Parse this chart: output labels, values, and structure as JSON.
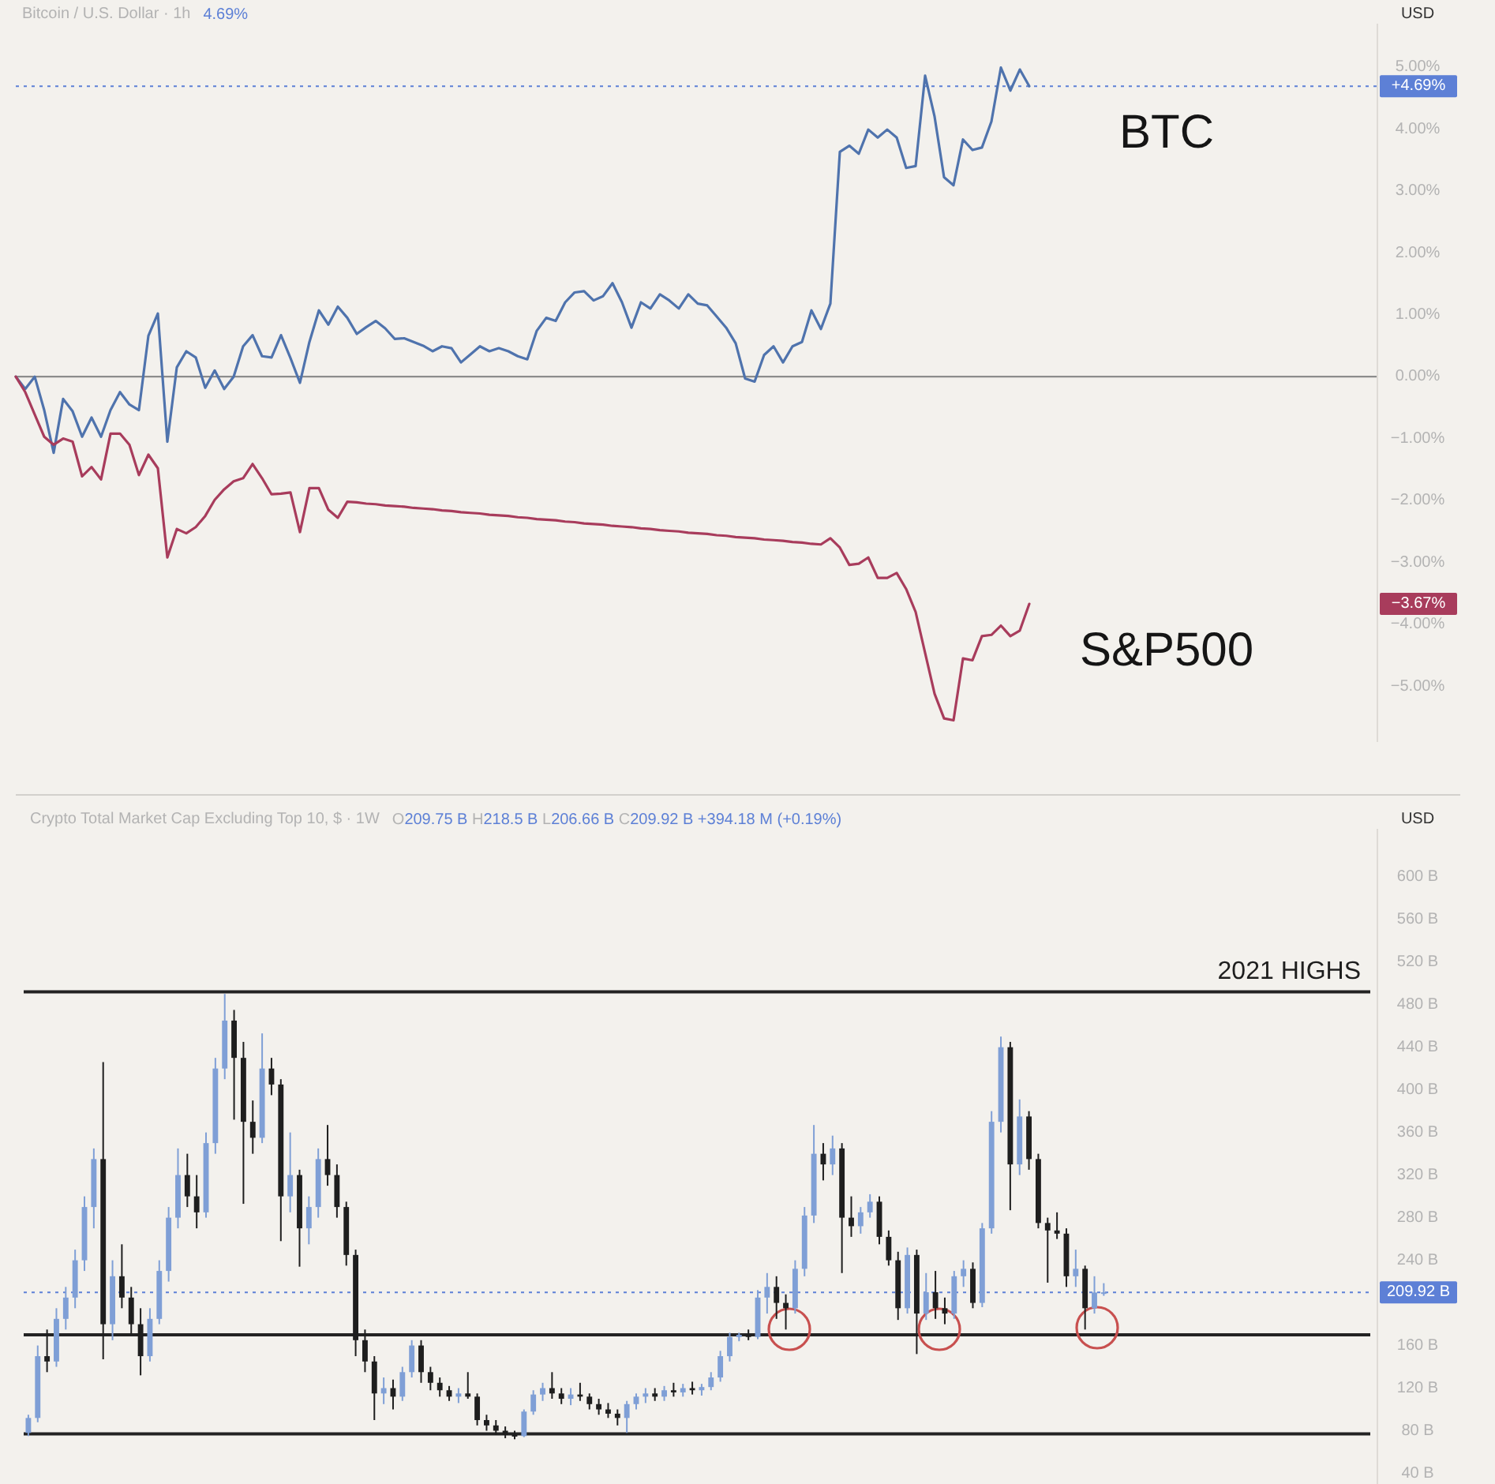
{
  "chart_data": [
    {
      "type": "line",
      "title": "Bitcoin / U.S. Dollar · 1h",
      "subtitle": "4.69%",
      "ylabel": "USD",
      "tick_labels": "y",
      "categories": [
        null,
        null,
        null,
        null,
        null,
        null,
        null,
        null,
        null,
        null,
        null,
        null,
        null,
        null,
        null,
        null,
        null,
        null,
        null,
        null,
        null,
        null,
        null,
        null,
        null,
        null,
        null,
        null,
        null,
        null,
        null,
        null,
        null,
        null,
        null,
        null,
        null,
        null,
        null,
        null,
        null,
        null,
        null,
        null,
        null,
        null,
        null,
        null,
        null,
        null,
        null,
        null,
        null,
        null,
        null,
        null,
        null,
        null,
        null,
        null,
        null,
        null,
        null,
        null,
        null,
        null,
        null,
        null,
        null,
        null,
        null,
        null,
        null,
        null,
        null,
        null,
        null,
        null,
        null,
        null,
        null,
        null,
        null,
        null,
        null,
        null,
        null,
        null,
        null,
        null,
        null,
        null,
        null,
        null,
        null,
        null,
        null,
        null,
        null,
        null,
        null,
        null,
        null,
        null,
        null,
        null,
        null,
        null
      ],
      "series": [
        {
          "name": "BTC",
          "color": "#4f73ad",
          "values": [
            0.0,
            -0.2,
            0.0,
            -0.54,
            -1.23,
            -0.36,
            -0.56,
            -0.97,
            -0.66,
            -0.97,
            -0.54,
            -0.25,
            -0.45,
            -0.54,
            0.66,
            1.02,
            -1.05,
            0.15,
            0.41,
            0.31,
            -0.18,
            0.1,
            -0.2,
            0.0,
            0.49,
            0.67,
            0.33,
            0.31,
            0.67,
            0.3,
            -0.1,
            0.56,
            1.07,
            0.84,
            1.13,
            0.95,
            0.69,
            0.8,
            0.9,
            0.78,
            0.61,
            0.62,
            0.56,
            0.5,
            0.41,
            0.49,
            0.46,
            0.23,
            0.36,
            0.49,
            0.41,
            0.46,
            0.41,
            0.33,
            0.28,
            0.74,
            0.95,
            0.9,
            1.2,
            1.36,
            1.38,
            1.23,
            1.3,
            1.51,
            1.2,
            0.79,
            1.2,
            1.1,
            1.33,
            1.23,
            1.1,
            1.33,
            1.18,
            1.15,
            0.97,
            0.79,
            0.54,
            -0.03,
            -0.08,
            0.35,
            0.49,
            0.23,
            0.49,
            0.56,
            1.07,
            0.77,
            1.18,
            3.63,
            3.73,
            3.6,
            3.99,
            3.86,
            3.99,
            3.86,
            3.37,
            3.4,
            4.86,
            4.2,
            3.22,
            3.09,
            3.83,
            3.66,
            3.7,
            4.12,
            4.99,
            4.62,
            4.96,
            4.69
          ]
        },
        {
          "name": "S&P500",
          "color": "#a83c5c",
          "values": [
            0.0,
            -0.25,
            -0.61,
            -0.97,
            -1.1,
            -1.0,
            -1.05,
            -1.61,
            -1.46,
            -1.66,
            -0.92,
            -0.92,
            -1.1,
            -1.59,
            -1.26,
            -1.48,
            -2.92,
            -2.46,
            -2.53,
            -2.43,
            -2.25,
            -1.99,
            -1.82,
            -1.69,
            -1.64,
            -1.41,
            -1.64,
            -1.9,
            -1.89,
            -1.87,
            -2.51,
            -1.8,
            -1.8,
            -2.15,
            -2.28,
            -2.02,
            -2.03,
            -2.05,
            -2.06,
            -2.08,
            -2.09,
            -2.1,
            -2.12,
            -2.13,
            -2.14,
            -2.16,
            -2.17,
            -2.19,
            -2.2,
            -2.21,
            -2.23,
            -2.24,
            -2.25,
            -2.27,
            -2.28,
            -2.3,
            -2.31,
            -2.32,
            -2.34,
            -2.35,
            -2.37,
            -2.38,
            -2.39,
            -2.41,
            -2.42,
            -2.43,
            -2.45,
            -2.46,
            -2.48,
            -2.49,
            -2.5,
            -2.52,
            -2.53,
            -2.54,
            -2.56,
            -2.57,
            -2.59,
            -2.6,
            -2.61,
            -2.63,
            -2.64,
            -2.65,
            -2.67,
            -2.68,
            -2.7,
            -2.71,
            -2.61,
            -2.76,
            -3.04,
            -3.02,
            -2.92,
            -3.25,
            -3.25,
            -3.17,
            -3.43,
            -3.8,
            -4.46,
            -5.12,
            -5.52,
            -5.55,
            -4.55,
            -4.58,
            -4.19,
            -4.17,
            -4.02,
            -4.19,
            -4.1,
            -3.67
          ]
        }
      ],
      "ylim": [
        -5.9,
        5.7
      ],
      "yticks": [
        {
          "value": -5,
          "label": "−5.00%"
        },
        {
          "value": -4,
          "label": "−4.00%"
        },
        {
          "value": -3,
          "label": "−3.00%"
        },
        {
          "value": -2,
          "label": "−2.00%"
        },
        {
          "value": -1,
          "label": "−1.00%"
        },
        {
          "value": 0,
          "label": "0.00%"
        },
        {
          "value": 1,
          "label": "1.00%"
        },
        {
          "value": 2,
          "label": "2.00%"
        },
        {
          "value": 3,
          "label": "3.00%"
        },
        {
          "value": 4,
          "label": "4.00%"
        },
        {
          "value": 5,
          "label": "5.00%"
        }
      ],
      "ref_lines": [
        {
          "axis": "y",
          "value": 0,
          "color": "#8c8c8c"
        },
        {
          "axis": "y",
          "value": 4.69,
          "color": "#5d80d6",
          "line_style": "dotted"
        }
      ],
      "annotations": [
        "+4.69%",
        "−3.67%"
      ]
    },
    {
      "type": "candlestick",
      "title": "Crypto Total Market Cap Excluding Top 10, $ · 1W",
      "subtitle": "O209.75 B H218.5 B L206.66 B C209.92 B +394.18 M (+0.19%)",
      "ylabel": "USD",
      "tick_labels": "y",
      "categories": [
        null,
        null,
        null,
        null,
        null,
        null,
        null,
        null,
        null,
        null,
        null,
        null,
        null,
        null,
        null,
        null,
        null,
        null,
        null,
        null,
        null,
        null,
        null,
        null,
        null,
        null,
        null,
        null,
        null,
        null,
        null,
        null,
        null,
        null,
        null,
        null,
        null,
        null,
        null,
        null,
        null,
        null,
        null,
        null,
        null,
        null,
        null,
        null,
        null,
        null,
        null,
        null,
        null,
        null,
        null,
        null,
        null,
        null,
        null,
        null,
        null,
        null,
        null,
        null,
        null,
        null,
        null,
        null,
        null,
        null,
        null,
        null,
        null,
        null,
        null,
        null,
        null,
        null,
        null,
        null,
        null,
        null,
        null,
        null,
        null,
        null,
        null,
        null,
        null,
        null,
        null,
        null,
        null,
        null,
        null,
        null,
        null,
        null,
        null,
        null,
        null,
        null,
        null,
        null,
        null,
        null,
        null,
        null,
        null,
        null,
        null,
        null,
        null,
        null,
        null,
        null,
        null,
        null,
        null,
        null,
        null,
        null,
        null,
        null,
        null,
        null,
        null,
        null,
        null,
        null,
        null,
        null,
        null,
        null,
        null,
        null,
        null,
        null,
        null,
        null,
        null,
        null,
        null,
        null
      ],
      "ohlc": [
        [
          78,
          95,
          75,
          92
        ],
        [
          92,
          160,
          88,
          150
        ],
        [
          150,
          175,
          135,
          145
        ],
        [
          145,
          195,
          140,
          185
        ],
        [
          185,
          215,
          175,
          205
        ],
        [
          205,
          250,
          195,
          240
        ],
        [
          240,
          300,
          230,
          290
        ],
        [
          290,
          345,
          270,
          335
        ],
        [
          335,
          426,
          147,
          180
        ],
        [
          180,
          240,
          165,
          225
        ],
        [
          225,
          255,
          195,
          205
        ],
        [
          205,
          215,
          170,
          180
        ],
        [
          180,
          195,
          132,
          150
        ],
        [
          150,
          195,
          145,
          185
        ],
        [
          185,
          240,
          180,
          230
        ],
        [
          230,
          290,
          220,
          280
        ],
        [
          280,
          345,
          270,
          320
        ],
        [
          320,
          340,
          290,
          300
        ],
        [
          300,
          320,
          270,
          285
        ],
        [
          285,
          360,
          280,
          350
        ],
        [
          350,
          430,
          340,
          420
        ],
        [
          420,
          490,
          410,
          465
        ],
        [
          465,
          475,
          372,
          430
        ],
        [
          430,
          445,
          293,
          370
        ],
        [
          370,
          390,
          340,
          355
        ],
        [
          355,
          453,
          350,
          420
        ],
        [
          420,
          430,
          395,
          405
        ],
        [
          405,
          410,
          258,
          300
        ],
        [
          300,
          360,
          285,
          320
        ],
        [
          320,
          325,
          234,
          270
        ],
        [
          270,
          300,
          255,
          290
        ],
        [
          290,
          345,
          280,
          335
        ],
        [
          335,
          367,
          310,
          320
        ],
        [
          320,
          330,
          280,
          290
        ],
        [
          290,
          295,
          235,
          245
        ],
        [
          245,
          250,
          150,
          165
        ],
        [
          165,
          175,
          135,
          145
        ],
        [
          145,
          150,
          90,
          115
        ],
        [
          115,
          130,
          105,
          120
        ],
        [
          120,
          128,
          100,
          112
        ],
        [
          112,
          140,
          108,
          135
        ],
        [
          135,
          165,
          130,
          160
        ],
        [
          160,
          165,
          125,
          135
        ],
        [
          135,
          140,
          118,
          125
        ],
        [
          125,
          130,
          112,
          118
        ],
        [
          118,
          122,
          108,
          112
        ],
        [
          112,
          120,
          106,
          115
        ],
        [
          115,
          135,
          110,
          112
        ],
        [
          112,
          115,
          85,
          90
        ],
        [
          90,
          95,
          80,
          85
        ],
        [
          85,
          90,
          76,
          80
        ],
        [
          80,
          84,
          73,
          76
        ],
        [
          76,
          80,
          72,
          75
        ],
        [
          75,
          100,
          74,
          98
        ],
        [
          98,
          118,
          95,
          114
        ],
        [
          114,
          125,
          108,
          120
        ],
        [
          120,
          135,
          110,
          115
        ],
        [
          115,
          120,
          105,
          110
        ],
        [
          110,
          120,
          104,
          114
        ],
        [
          114,
          125,
          108,
          112
        ],
        [
          112,
          115,
          100,
          105
        ],
        [
          105,
          110,
          95,
          100
        ],
        [
          100,
          106,
          92,
          96
        ],
        [
          96,
          100,
          85,
          92
        ],
        [
          92,
          108,
          78,
          105
        ],
        [
          105,
          115,
          100,
          112
        ],
        [
          112,
          120,
          106,
          115
        ],
        [
          115,
          120,
          108,
          112
        ],
        [
          112,
          122,
          108,
          118
        ],
        [
          118,
          125,
          112,
          116
        ],
        [
          116,
          124,
          112,
          120
        ],
        [
          120,
          126,
          114,
          118
        ],
        [
          118,
          124,
          113,
          121
        ],
        [
          121,
          135,
          118,
          130
        ],
        [
          130,
          155,
          126,
          150
        ],
        [
          150,
          172,
          145,
          168
        ],
        [
          168,
          172,
          164,
          170
        ],
        [
          170,
          175,
          165,
          168
        ],
        [
          168,
          212,
          166,
          205
        ],
        [
          205,
          228,
          190,
          215
        ],
        [
          215,
          225,
          185,
          200
        ],
        [
          200,
          208,
          175,
          195
        ],
        [
          195,
          240,
          190,
          232
        ],
        [
          232,
          290,
          225,
          282
        ],
        [
          282,
          367,
          275,
          340
        ],
        [
          340,
          350,
          315,
          330
        ],
        [
          330,
          357,
          320,
          345
        ],
        [
          345,
          350,
          228,
          280
        ],
        [
          280,
          300,
          262,
          272
        ],
        [
          272,
          290,
          265,
          285
        ],
        [
          285,
          302,
          280,
          295
        ],
        [
          295,
          300,
          255,
          262
        ],
        [
          262,
          268,
          235,
          240
        ],
        [
          240,
          248,
          184,
          195
        ],
        [
          195,
          252,
          190,
          245
        ],
        [
          245,
          250,
          152,
          190
        ],
        [
          190,
          228,
          184,
          210
        ],
        [
          210,
          230,
          185,
          195
        ],
        [
          195,
          205,
          180,
          190
        ],
        [
          190,
          230,
          185,
          225
        ],
        [
          225,
          240,
          215,
          232
        ],
        [
          232,
          238,
          195,
          200
        ],
        [
          200,
          275,
          196,
          270
        ],
        [
          270,
          380,
          265,
          370
        ],
        [
          370,
          450,
          360,
          440
        ],
        [
          440,
          445,
          287,
          330
        ],
        [
          330,
          391,
          320,
          375
        ],
        [
          375,
          380,
          325,
          335
        ],
        [
          335,
          340,
          270,
          275
        ],
        [
          275,
          280,
          219,
          268
        ],
        [
          268,
          285,
          260,
          265
        ],
        [
          265,
          270,
          215,
          225
        ],
        [
          225,
          250,
          215,
          232
        ],
        [
          232,
          235,
          175,
          195
        ],
        [
          195,
          225,
          190,
          209.75
        ],
        [
          209.75,
          218.5,
          206.66,
          209.92
        ],
        null,
        null,
        null,
        null,
        null,
        null,
        null,
        null,
        null,
        null,
        null,
        null,
        null,
        null,
        null,
        null,
        null,
        null,
        null,
        null,
        null,
        null,
        null,
        null,
        null,
        null,
        null,
        null
      ],
      "colors": [
        "#7f9fd6",
        "#7f9fd6",
        "#1e1e1e",
        "#7f9fd6",
        "#7f9fd6",
        "#7f9fd6",
        "#7f9fd6",
        "#7f9fd6",
        "#1e1e1e",
        "#7f9fd6",
        "#1e1e1e",
        "#1e1e1e",
        "#1e1e1e",
        "#7f9fd6",
        "#7f9fd6",
        "#7f9fd6",
        "#7f9fd6",
        "#1e1e1e",
        "#1e1e1e",
        "#7f9fd6",
        "#7f9fd6",
        "#7f9fd6",
        "#1e1e1e",
        "#1e1e1e",
        "#1e1e1e",
        "#7f9fd6",
        "#1e1e1e",
        "#1e1e1e",
        "#7f9fd6",
        "#1e1e1e",
        "#7f9fd6",
        "#7f9fd6",
        "#1e1e1e",
        "#1e1e1e",
        "#1e1e1e",
        "#1e1e1e",
        "#1e1e1e",
        "#1e1e1e",
        "#7f9fd6",
        "#1e1e1e",
        "#7f9fd6",
        "#7f9fd6",
        "#1e1e1e",
        "#1e1e1e",
        "#1e1e1e",
        "#1e1e1e",
        "#7f9fd6",
        "#1e1e1e",
        "#1e1e1e",
        "#1e1e1e",
        "#1e1e1e",
        "#1e1e1e",
        "#1e1e1e",
        "#7f9fd6",
        "#7f9fd6",
        "#7f9fd6",
        "#1e1e1e",
        "#1e1e1e",
        "#7f9fd6",
        "#1e1e1e",
        "#1e1e1e",
        "#1e1e1e",
        "#1e1e1e",
        "#1e1e1e",
        "#7f9fd6",
        "#7f9fd6",
        "#7f9fd6",
        "#1e1e1e",
        "#7f9fd6",
        "#1e1e1e",
        "#7f9fd6",
        "#1e1e1e",
        "#7f9fd6",
        "#7f9fd6",
        "#7f9fd6",
        "#7f9fd6",
        "#7f9fd6",
        "#1e1e1e",
        "#7f9fd6",
        "#7f9fd6",
        "#1e1e1e",
        "#1e1e1e",
        "#7f9fd6",
        "#7f9fd6",
        "#7f9fd6",
        "#1e1e1e",
        "#7f9fd6",
        "#1e1e1e",
        "#1e1e1e",
        "#7f9fd6",
        "#7f9fd6",
        "#1e1e1e",
        "#1e1e1e",
        "#1e1e1e",
        "#7f9fd6",
        "#1e1e1e",
        "#7f9fd6",
        "#1e1e1e",
        "#1e1e1e",
        "#7f9fd6",
        "#7f9fd6",
        "#1e1e1e",
        "#7f9fd6",
        "#7f9fd6",
        "#7f9fd6",
        "#1e1e1e",
        "#7f9fd6",
        "#1e1e1e",
        "#1e1e1e",
        "#1e1e1e",
        "#1e1e1e",
        "#1e1e1e",
        "#7f9fd6",
        "#1e1e1e",
        "#7f9fd6",
        "#7f9fd6",
        null,
        null,
        null,
        null,
        null,
        null,
        null,
        null,
        null,
        null,
        null,
        null,
        null,
        null,
        null,
        null,
        null,
        null,
        null,
        null,
        null,
        null,
        null,
        null,
        null,
        null,
        null,
        null
      ],
      "ylim": [
        30,
        645
      ],
      "yticks": [
        {
          "value": 40,
          "label": "40 B"
        },
        {
          "value": 80,
          "label": "80 B"
        },
        {
          "value": 120,
          "label": "120 B"
        },
        {
          "value": 160,
          "label": "160 B"
        },
        {
          "value": 240,
          "label": "240 B"
        },
        {
          "value": 280,
          "label": "280 B"
        },
        {
          "value": 320,
          "label": "320 B"
        },
        {
          "value": 360,
          "label": "360 B"
        },
        {
          "value": 400,
          "label": "400 B"
        },
        {
          "value": 440,
          "label": "440 B"
        },
        {
          "value": 480,
          "label": "480 B"
        },
        {
          "value": 520,
          "label": "520 B"
        },
        {
          "value": 560,
          "label": "560 B"
        },
        {
          "value": 600,
          "label": "600 B"
        }
      ],
      "ref_lines": [
        {
          "axis": "y",
          "value": 492,
          "label": "2021 HIGHS",
          "color": "#232323"
        },
        {
          "axis": "y",
          "value": 170,
          "color": "#232323"
        },
        {
          "axis": "y",
          "value": 77,
          "color": "#232323"
        },
        {
          "axis": "y",
          "value": 209.92,
          "color": "#5d80d6",
          "line_style": "dotted"
        }
      ],
      "annotations": [
        "209.92 B"
      ]
    }
  ]
}
